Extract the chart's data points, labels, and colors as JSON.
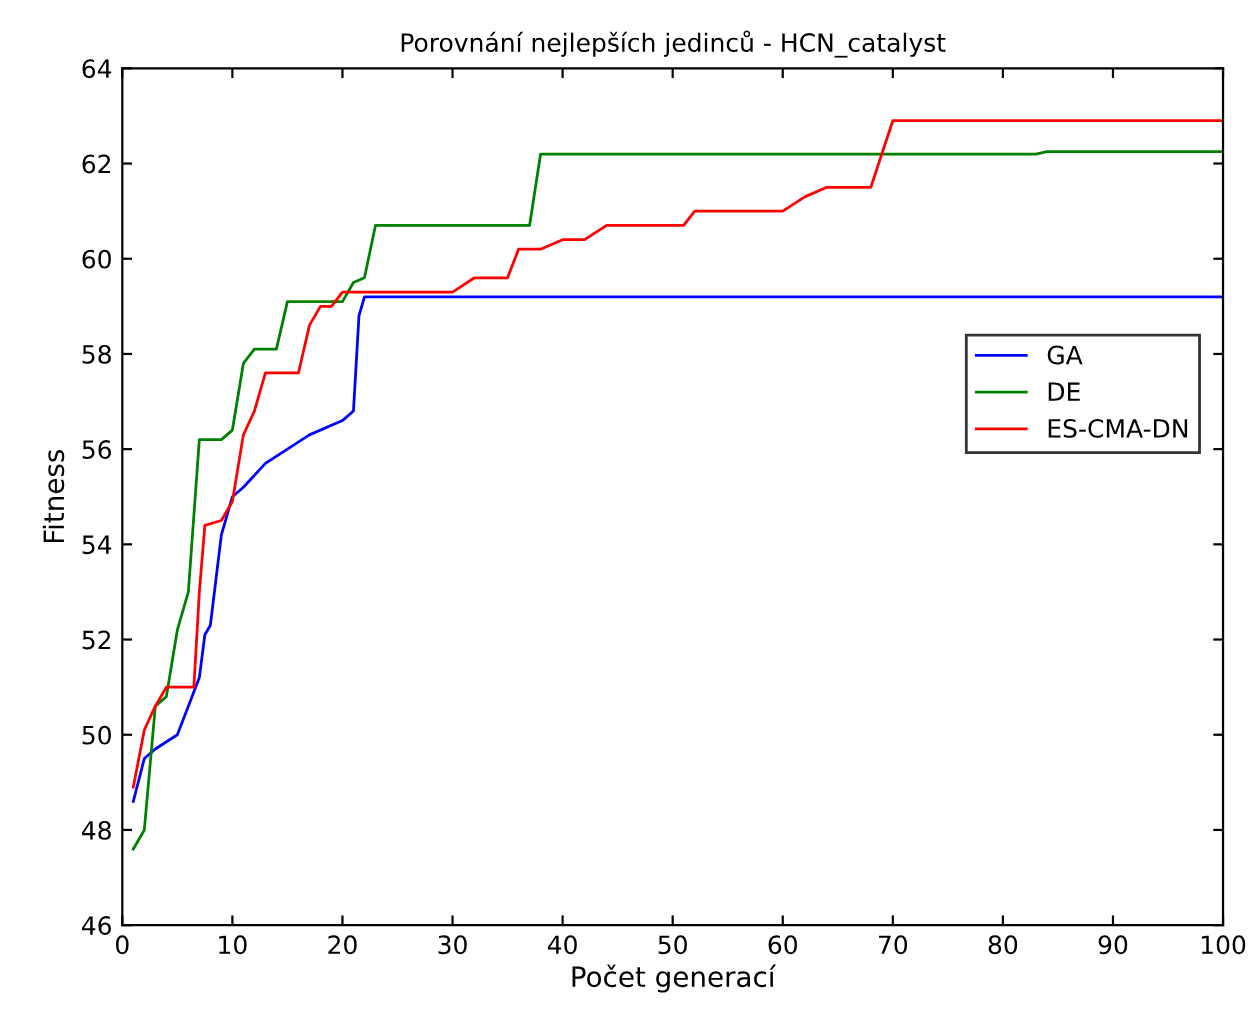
{
  "chart_data": {
    "type": "line",
    "title": "Porovnání nejlepších jedinců - HCN_catalyst",
    "xlabel": "Počet generací",
    "ylabel": "Fitness",
    "xlim": [
      0,
      100
    ],
    "xticks": [
      0,
      10,
      20,
      30,
      40,
      50,
      60,
      70,
      80,
      90,
      100
    ],
    "ylim": [
      46,
      64
    ],
    "yticks": [
      46,
      48,
      50,
      52,
      54,
      56,
      58,
      60,
      62,
      64
    ],
    "grid": false,
    "legend": "center right",
    "marker": "none",
    "line_style": "solid",
    "series": [
      {
        "name": "GA",
        "color": "#0000ff",
        "x": [
          1,
          2,
          3,
          5,
          6,
          7,
          7.5,
          8,
          9,
          10,
          11,
          13,
          15,
          17,
          20,
          21,
          21.5,
          22,
          40,
          100
        ],
        "values": [
          48.6,
          49.5,
          49.7,
          50.0,
          50.6,
          51.2,
          52.1,
          52.3,
          54.2,
          55.0,
          55.2,
          55.7,
          56.0,
          56.3,
          56.6,
          56.8,
          58.8,
          59.2,
          59.2,
          59.2
        ]
      },
      {
        "name": "DE",
        "color": "#008000",
        "x": [
          1,
          2,
          3,
          4,
          5,
          6,
          7,
          9,
          10,
          11,
          12,
          14,
          15,
          20,
          21,
          22,
          23,
          37,
          38,
          83,
          84,
          100
        ],
        "values": [
          47.6,
          48.0,
          50.6,
          50.8,
          52.2,
          53.0,
          56.2,
          56.2,
          56.4,
          57.8,
          58.1,
          58.1,
          59.1,
          59.1,
          59.5,
          59.6,
          60.7,
          60.7,
          62.2,
          62.2,
          62.25,
          62.25
        ]
      },
      {
        "name": "ES-CMA-DN",
        "color": "#ff0000",
        "x": [
          1,
          2,
          3,
          4,
          6.5,
          7,
          7.5,
          9,
          10,
          11,
          12,
          13,
          16,
          17,
          18,
          19,
          20,
          30,
          32,
          35,
          36,
          38,
          40,
          42,
          44,
          51,
          52,
          60,
          62,
          64,
          68,
          69,
          70,
          100
        ],
        "values": [
          48.9,
          50.1,
          50.6,
          51.0,
          51.0,
          53.0,
          54.4,
          54.5,
          54.9,
          56.3,
          56.8,
          57.6,
          57.6,
          58.6,
          59.0,
          59.0,
          59.3,
          59.3,
          59.6,
          59.6,
          60.2,
          60.2,
          60.4,
          60.4,
          60.7,
          60.7,
          61.0,
          61.0,
          61.3,
          61.5,
          61.5,
          62.2,
          62.9,
          62.9
        ]
      }
    ]
  }
}
